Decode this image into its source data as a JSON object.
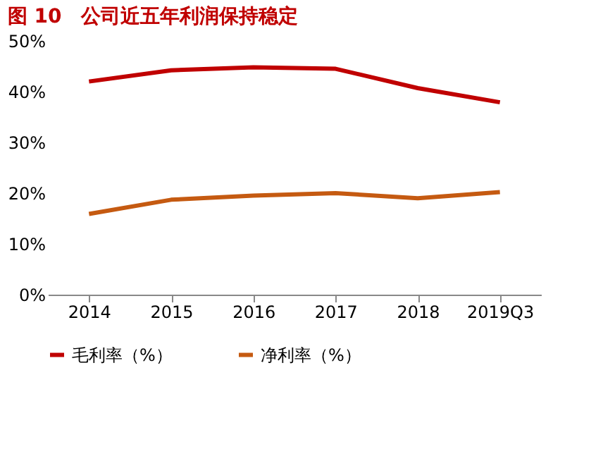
{
  "chart_data": {
    "type": "line",
    "title": "图 10　公司近五年利润保持稳定",
    "categories": [
      "2014",
      "2015",
      "2016",
      "2017",
      "2018",
      "2019Q3"
    ],
    "series": [
      {
        "name": "毛利率（%）",
        "color": "#c00000",
        "values": [
          42.0,
          44.2,
          44.8,
          44.5,
          40.7,
          37.9
        ]
      },
      {
        "name": "净利率（%）",
        "color": "#c55a11",
        "values": [
          15.9,
          18.7,
          19.5,
          20.0,
          19.0,
          20.2
        ]
      }
    ],
    "ylim": [
      0,
      50
    ],
    "yticks": [
      {
        "value": 0,
        "label": "0%"
      },
      {
        "value": 10,
        "label": "10%"
      },
      {
        "value": 20,
        "label": "20%"
      },
      {
        "value": 30,
        "label": "30%"
      },
      {
        "value": 40,
        "label": "40%"
      },
      {
        "value": 50,
        "label": "50%"
      }
    ],
    "grid": false,
    "legend": "bottom",
    "marker": "none",
    "line_style": "solid"
  }
}
